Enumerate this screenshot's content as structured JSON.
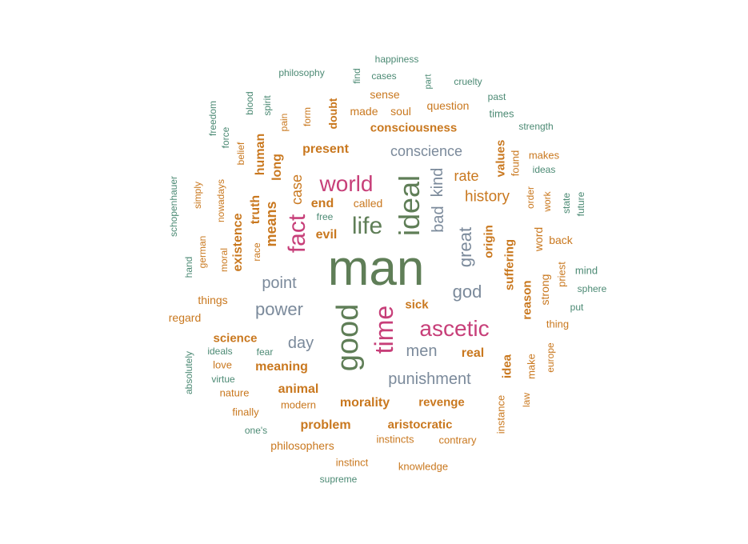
{
  "palette": {
    "olive": "#5f7e57",
    "magenta": "#c73f79",
    "slate": "#7b8a9b",
    "orange": "#c9781f",
    "teal": "#4c8a74"
  },
  "words": [
    {
      "text": "man",
      "color": "olive",
      "weight": "normal"
    },
    {
      "text": "good",
      "color": "olive",
      "weight": "normal"
    },
    {
      "text": "ideal",
      "color": "olive",
      "weight": "normal"
    },
    {
      "text": "time",
      "color": "magenta",
      "weight": "normal"
    },
    {
      "text": "ascetic",
      "color": "magenta",
      "weight": "normal"
    },
    {
      "text": "life",
      "color": "olive",
      "weight": "normal"
    },
    {
      "text": "world",
      "color": "magenta",
      "weight": "normal"
    },
    {
      "text": "fact",
      "color": "magenta",
      "weight": "normal"
    },
    {
      "text": "power",
      "color": "slate",
      "weight": "normal"
    },
    {
      "text": "god",
      "color": "slate",
      "weight": "normal"
    },
    {
      "text": "great",
      "color": "slate",
      "weight": "normal"
    },
    {
      "text": "punishment",
      "color": "slate",
      "weight": "normal"
    },
    {
      "text": "men",
      "color": "slate",
      "weight": "normal"
    },
    {
      "text": "bad",
      "color": "slate",
      "weight": "normal"
    },
    {
      "text": "kind",
      "color": "slate",
      "weight": "normal"
    },
    {
      "text": "conscience",
      "color": "slate",
      "weight": "normal"
    },
    {
      "text": "point",
      "color": "slate",
      "weight": "normal"
    },
    {
      "text": "day",
      "color": "slate",
      "weight": "normal"
    },
    {
      "text": "history",
      "color": "orange",
      "weight": "normal"
    },
    {
      "text": "real",
      "color": "orange",
      "weight": "bold"
    },
    {
      "text": "rate",
      "color": "orange",
      "weight": "normal"
    },
    {
      "text": "means",
      "color": "orange",
      "weight": "bold"
    },
    {
      "text": "case",
      "color": "orange",
      "weight": "normal"
    },
    {
      "text": "end",
      "color": "orange",
      "weight": "bold"
    },
    {
      "text": "evil",
      "color": "orange",
      "weight": "bold"
    },
    {
      "text": "present",
      "color": "orange",
      "weight": "bold"
    },
    {
      "text": "consciousness",
      "color": "orange",
      "weight": "bold"
    },
    {
      "text": "morality",
      "color": "orange",
      "weight": "bold"
    },
    {
      "text": "revenge",
      "color": "orange",
      "weight": "bold"
    },
    {
      "text": "animal",
      "color": "orange",
      "weight": "bold"
    },
    {
      "text": "meaning",
      "color": "orange",
      "weight": "bold"
    },
    {
      "text": "science",
      "color": "orange",
      "weight": "bold"
    },
    {
      "text": "problem",
      "color": "orange",
      "weight": "bold"
    },
    {
      "text": "aristocratic",
      "color": "orange",
      "weight": "bold"
    },
    {
      "text": "sick",
      "color": "orange",
      "weight": "bold"
    },
    {
      "text": "suffering",
      "color": "orange",
      "weight": "bold"
    },
    {
      "text": "origin",
      "color": "orange",
      "weight": "bold"
    },
    {
      "text": "reason",
      "color": "orange",
      "weight": "bold"
    },
    {
      "text": "idea",
      "color": "orange",
      "weight": "bold"
    },
    {
      "text": "values",
      "color": "orange",
      "weight": "bold"
    },
    {
      "text": "truth",
      "color": "orange",
      "weight": "bold"
    },
    {
      "text": "human",
      "color": "orange",
      "weight": "bold"
    },
    {
      "text": "long",
      "color": "orange",
      "weight": "bold"
    },
    {
      "text": "existence",
      "color": "orange",
      "weight": "bold"
    },
    {
      "text": "doubt",
      "color": "orange",
      "weight": "bold"
    },
    {
      "text": "question",
      "color": "orange",
      "weight": "normal"
    },
    {
      "text": "sense",
      "color": "orange",
      "weight": "normal"
    },
    {
      "text": "soul",
      "color": "orange",
      "weight": "normal"
    },
    {
      "text": "made",
      "color": "orange",
      "weight": "normal"
    },
    {
      "text": "called",
      "color": "orange",
      "weight": "normal"
    },
    {
      "text": "word",
      "color": "orange",
      "weight": "normal"
    },
    {
      "text": "back",
      "color": "orange",
      "weight": "normal"
    },
    {
      "text": "strong",
      "color": "orange",
      "weight": "normal"
    },
    {
      "text": "priest",
      "color": "orange",
      "weight": "normal"
    },
    {
      "text": "thing",
      "color": "orange",
      "weight": "normal"
    },
    {
      "text": "make",
      "color": "orange",
      "weight": "normal"
    },
    {
      "text": "europe",
      "color": "orange",
      "weight": "normal"
    },
    {
      "text": "law",
      "color": "orange",
      "weight": "normal"
    },
    {
      "text": "instance",
      "color": "orange",
      "weight": "normal"
    },
    {
      "text": "contrary",
      "color": "orange",
      "weight": "normal"
    },
    {
      "text": "instincts",
      "color": "orange",
      "weight": "normal"
    },
    {
      "text": "knowledge",
      "color": "orange",
      "weight": "normal"
    },
    {
      "text": "instinct",
      "color": "orange",
      "weight": "normal"
    },
    {
      "text": "philosophers",
      "color": "orange",
      "weight": "normal"
    },
    {
      "text": "modern",
      "color": "orange",
      "weight": "normal"
    },
    {
      "text": "finally",
      "color": "orange",
      "weight": "normal"
    },
    {
      "text": "nature",
      "color": "orange",
      "weight": "normal"
    },
    {
      "text": "love",
      "color": "orange",
      "weight": "normal"
    },
    {
      "text": "things",
      "color": "orange",
      "weight": "normal"
    },
    {
      "text": "regard",
      "color": "orange",
      "weight": "normal"
    },
    {
      "text": "makes",
      "color": "orange",
      "weight": "normal"
    },
    {
      "text": "found",
      "color": "orange",
      "weight": "normal"
    },
    {
      "text": "order",
      "color": "orange",
      "weight": "normal"
    },
    {
      "text": "work",
      "color": "orange",
      "weight": "normal"
    },
    {
      "text": "form",
      "color": "orange",
      "weight": "normal"
    },
    {
      "text": "pain",
      "color": "orange",
      "weight": "normal"
    },
    {
      "text": "belief",
      "color": "orange",
      "weight": "normal"
    },
    {
      "text": "simply",
      "color": "orange",
      "weight": "normal"
    },
    {
      "text": "nowadays",
      "color": "orange",
      "weight": "normal"
    },
    {
      "text": "german",
      "color": "orange",
      "weight": "normal"
    },
    {
      "text": "moral",
      "color": "orange",
      "weight": "normal"
    },
    {
      "text": "race",
      "color": "orange",
      "weight": "normal"
    },
    {
      "text": "happiness",
      "color": "teal",
      "weight": "normal"
    },
    {
      "text": "philosophy",
      "color": "teal",
      "weight": "normal"
    },
    {
      "text": "find",
      "color": "teal",
      "weight": "normal"
    },
    {
      "text": "cases",
      "color": "teal",
      "weight": "normal"
    },
    {
      "text": "part",
      "color": "teal",
      "weight": "normal"
    },
    {
      "text": "cruelty",
      "color": "teal",
      "weight": "normal"
    },
    {
      "text": "past",
      "color": "teal",
      "weight": "normal"
    },
    {
      "text": "times",
      "color": "teal",
      "weight": "normal"
    },
    {
      "text": "strength",
      "color": "teal",
      "weight": "normal"
    },
    {
      "text": "ideas",
      "color": "teal",
      "weight": "normal"
    },
    {
      "text": "state",
      "color": "teal",
      "weight": "normal"
    },
    {
      "text": "future",
      "color": "teal",
      "weight": "normal"
    },
    {
      "text": "mind",
      "color": "teal",
      "weight": "normal"
    },
    {
      "text": "sphere",
      "color": "teal",
      "weight": "normal"
    },
    {
      "text": "put",
      "color": "teal",
      "weight": "normal"
    },
    {
      "text": "blood",
      "color": "teal",
      "weight": "normal"
    },
    {
      "text": "spirit",
      "color": "teal",
      "weight": "normal"
    },
    {
      "text": "freedom",
      "color": "teal",
      "weight": "normal"
    },
    {
      "text": "force",
      "color": "teal",
      "weight": "normal"
    },
    {
      "text": "schopenhauer",
      "color": "teal",
      "weight": "normal"
    },
    {
      "text": "hand",
      "color": "teal",
      "weight": "normal"
    },
    {
      "text": "free",
      "color": "teal",
      "weight": "normal"
    },
    {
      "text": "ideals",
      "color": "teal",
      "weight": "normal"
    },
    {
      "text": "fear",
      "color": "teal",
      "weight": "normal"
    },
    {
      "text": "virtue",
      "color": "teal",
      "weight": "normal"
    },
    {
      "text": "absolutely",
      "color": "teal",
      "weight": "normal"
    },
    {
      "text": "one's",
      "color": "teal",
      "weight": "normal"
    },
    {
      "text": "supreme",
      "color": "teal",
      "weight": "normal"
    }
  ]
}
